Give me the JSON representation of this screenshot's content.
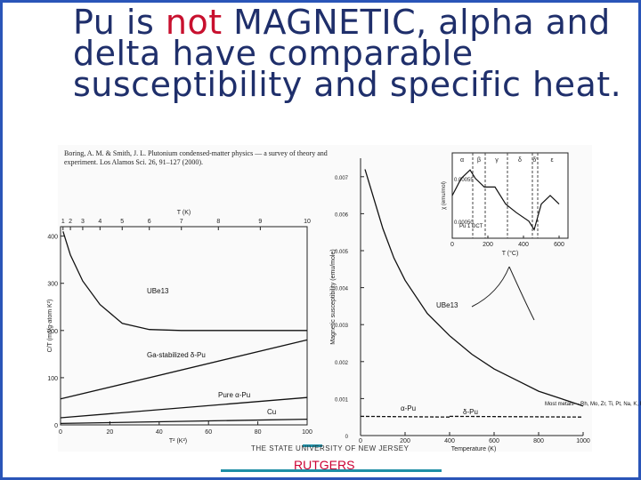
{
  "slide": {
    "title_part1": "Pu is ",
    "title_highlight": "not",
    "title_part2": " MAGNETIC, alpha and delta have comparable susceptibility and specific heat.",
    "citation": "Boring, A. M. & Smith, J. L. Plutonium condensed-matter physics — a survey of theory and experiment. Los Alamos Sci. 26, 91–127 (2000).",
    "footer_university": "THE STATE UNIVERSITY OF NEW JERSEY",
    "footer_name": "RUTGERS",
    "colors": {
      "title": "#1f2f6b",
      "highlight": "#c8102e",
      "frame": "#2a55b8",
      "rule": "#1e8fa6"
    }
  },
  "chart_data": [
    {
      "type": "line",
      "title": "",
      "xlabel": "T² (K²)",
      "ylabel": "C/T (mJ/g-atom K²)",
      "top_axis_label": "T (K)",
      "top_ticks": [
        "1",
        "2",
        "3",
        "4",
        "5",
        "6",
        "7",
        "8",
        "9",
        "10"
      ],
      "x_ticks": [
        "0",
        "20",
        "40",
        "60",
        "80",
        "100"
      ],
      "y_ticks": [
        "0",
        "100",
        "200",
        "300",
        "400"
      ],
      "xlim": [
        0,
        100
      ],
      "ylim": [
        0,
        420
      ],
      "series": [
        {
          "name": "UBe13",
          "x": [
            1,
            4,
            9,
            16,
            25,
            36,
            49,
            64,
            81,
            100
          ],
          "y": [
            410,
            360,
            305,
            255,
            215,
            202,
            200,
            200,
            200,
            200
          ]
        },
        {
          "name": "Ga-stabilized δ-Pu",
          "x": [
            0,
            100
          ],
          "y": [
            55,
            180
          ]
        },
        {
          "name": "Pure α-Pu",
          "x": [
            0,
            100
          ],
          "y": [
            15,
            58
          ]
        },
        {
          "name": "Cu",
          "x": [
            0,
            100
          ],
          "y": [
            3,
            12
          ]
        }
      ]
    },
    {
      "type": "line",
      "title": "",
      "xlabel": "Temperature (K)",
      "ylabel": "Magnetic susceptibility (emu/mole)",
      "x_ticks": [
        "0",
        "200",
        "400",
        "600",
        "800",
        "1000"
      ],
      "y_ticks": [
        "0",
        "0.001",
        "0.002",
        "0.003",
        "0.004",
        "0.005",
        "0.006",
        "0.007"
      ],
      "xlim": [
        0,
        1000
      ],
      "ylim": [
        0,
        0.0075
      ],
      "series": [
        {
          "name": "UBe13",
          "x": [
            20,
            50,
            100,
            150,
            200,
            300,
            400,
            500,
            600,
            700,
            800,
            900,
            1000
          ],
          "y": [
            0.0072,
            0.0066,
            0.0056,
            0.0048,
            0.0042,
            0.0033,
            0.0027,
            0.0022,
            0.0018,
            0.0015,
            0.0012,
            0.001,
            0.0008
          ]
        },
        {
          "name": "α-Pu",
          "x": [
            0,
            400
          ],
          "y": [
            0.00052,
            0.0005
          ]
        },
        {
          "name": "δ-Pu",
          "x": [
            400,
            1000
          ],
          "y": [
            0.00052,
            0.0005
          ]
        }
      ],
      "annotations": [
        "Most metals— Rh, Mo, Zr, Ti, Pt, Na, K, Rb"
      ]
    },
    {
      "type": "line",
      "title": "",
      "xlabel": "T (°C)",
      "ylabel": "χ (emu/mol)",
      "x_ticks": [
        "0",
        "200",
        "400",
        "600"
      ],
      "y_ticks": [
        "0.00050",
        "0.00055"
      ],
      "phases": [
        "α",
        "β",
        "γ",
        "δ",
        "δ'",
        "ε"
      ],
      "legend": [
        "Pu 1 DCT"
      ],
      "series": [
        {
          "name": "Pu",
          "x": [
            0,
            50,
            100,
            130,
            180,
            240,
            300,
            360,
            430,
            460,
            500,
            550,
            600
          ],
          "y": [
            0.00053,
            0.00055,
            0.00056,
            0.00055,
            0.00054,
            0.00054,
            0.00052,
            0.00051,
            0.0005,
            0.00049,
            0.00052,
            0.00053,
            0.00052
          ]
        }
      ]
    }
  ]
}
